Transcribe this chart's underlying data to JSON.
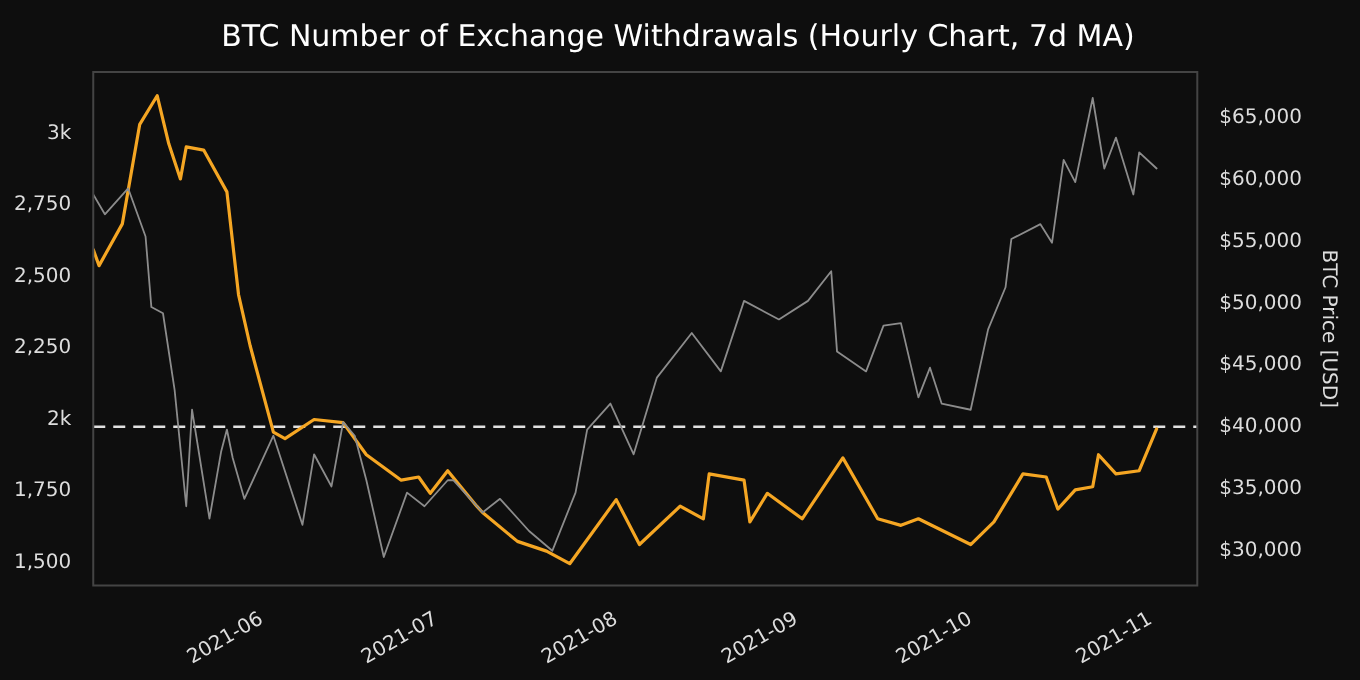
{
  "chart_data": {
    "type": "line",
    "title": "BTC Number of Exchange Withdrawals (Hourly Chart, 7d MA)",
    "y2label": "BTC Price [USD]",
    "xlim": [
      "2021-05-03",
      "2021-11-09"
    ],
    "xticks": [
      "2021-06",
      "2021-07",
      "2021-08",
      "2021-09",
      "2021-10",
      "2021-11"
    ],
    "ylim": [
      1420,
      3215
    ],
    "yticks": [
      {
        "value": 1500,
        "label": "1,500"
      },
      {
        "value": 1750,
        "label": "1,750"
      },
      {
        "value": 2000,
        "label": "2k"
      },
      {
        "value": 2250,
        "label": "2,250"
      },
      {
        "value": 2500,
        "label": "2,500"
      },
      {
        "value": 2750,
        "label": "2,750"
      },
      {
        "value": 3000,
        "label": "3k"
      }
    ],
    "y2lim": [
      27200,
      68700
    ],
    "y2ticks": [
      {
        "value": 30000,
        "label": "$30,000"
      },
      {
        "value": 35000,
        "label": "$35,000"
      },
      {
        "value": 40000,
        "label": "$40,000"
      },
      {
        "value": 45000,
        "label": "$45,000"
      },
      {
        "value": 50000,
        "label": "$50,000"
      },
      {
        "value": 55000,
        "label": "$55,000"
      },
      {
        "value": 60000,
        "label": "$60,000"
      },
      {
        "value": 65000,
        "label": "$65,000"
      }
    ],
    "grid": false,
    "legend": false,
    "ref_lines": [
      {
        "axis": "y",
        "value": 1975,
        "color": "#e0e0e0",
        "line_style": "dashed"
      }
    ],
    "series": [
      {
        "axis": "y2",
        "color": "#8c8c8c",
        "x": [
          "2021-05-03",
          "2021-05-05",
          "2021-05-09",
          "2021-05-12",
          "2021-05-13",
          "2021-05-15",
          "2021-05-17",
          "2021-05-19",
          "2021-05-20",
          "2021-05-23",
          "2021-05-25",
          "2021-05-26",
          "2021-05-27",
          "2021-05-29",
          "2021-06-03",
          "2021-06-08",
          "2021-06-10",
          "2021-06-13",
          "2021-06-15",
          "2021-06-17",
          "2021-06-19",
          "2021-06-22",
          "2021-06-26",
          "2021-06-29",
          "2021-07-03",
          "2021-07-04",
          "2021-07-09",
          "2021-07-12",
          "2021-07-17",
          "2021-07-21",
          "2021-07-25",
          "2021-07-27",
          "2021-07-31",
          "2021-08-04",
          "2021-08-08",
          "2021-08-14",
          "2021-08-19",
          "2021-08-23",
          "2021-08-29",
          "2021-09-03",
          "2021-09-07",
          "2021-09-08",
          "2021-09-13",
          "2021-09-16",
          "2021-09-19",
          "2021-09-22",
          "2021-09-24",
          "2021-09-26",
          "2021-10-01",
          "2021-10-04",
          "2021-10-07",
          "2021-10-08",
          "2021-10-13",
          "2021-10-15",
          "2021-10-17",
          "2021-10-19",
          "2021-10-22",
          "2021-10-24",
          "2021-10-26",
          "2021-10-29",
          "2021-10-30",
          "2021-11-02"
        ],
        "values": [
          58800,
          57200,
          59300,
          55400,
          49700,
          49200,
          43000,
          33600,
          41400,
          32600,
          38000,
          39800,
          37500,
          34200,
          39300,
          32100,
          37800,
          35200,
          40400,
          39300,
          35700,
          29500,
          34700,
          33600,
          35700,
          35700,
          33100,
          34200,
          31600,
          30000,
          34700,
          39800,
          41900,
          37800,
          44000,
          47600,
          44500,
          50200,
          48700,
          50200,
          52600,
          46100,
          44500,
          48200,
          48400,
          42400,
          44800,
          41900,
          41400,
          47900,
          51300,
          55200,
          56400,
          54900,
          61600,
          59800,
          66600,
          60900,
          63400,
          58800,
          62200,
          60900
        ]
      },
      {
        "color": "#f5a623",
        "x": [
          "2021-05-03",
          "2021-05-04",
          "2021-05-08",
          "2021-05-11",
          "2021-05-14",
          "2021-05-16",
          "2021-05-18",
          "2021-05-19",
          "2021-05-22",
          "2021-05-26",
          "2021-05-28",
          "2021-05-30",
          "2021-06-03",
          "2021-06-05",
          "2021-06-10",
          "2021-06-15",
          "2021-06-19",
          "2021-06-25",
          "2021-06-28",
          "2021-06-30",
          "2021-07-03",
          "2021-07-08",
          "2021-07-09",
          "2021-07-15",
          "2021-07-20",
          "2021-07-24",
          "2021-08-01",
          "2021-08-05",
          "2021-08-12",
          "2021-08-16",
          "2021-08-17",
          "2021-08-23",
          "2021-08-24",
          "2021-08-27",
          "2021-09-02",
          "2021-09-09",
          "2021-09-15",
          "2021-09-19",
          "2021-09-22",
          "2021-10-01",
          "2021-10-05",
          "2021-10-10",
          "2021-10-14",
          "2021-10-16",
          "2021-10-19",
          "2021-10-22",
          "2021-10-23",
          "2021-10-26",
          "2021-10-30",
          "2021-11-02"
        ],
        "values": [
          2594,
          2538,
          2684,
          3032,
          3132,
          2964,
          2841,
          2953,
          2942,
          2796,
          2437,
          2258,
          1956,
          1933,
          2000,
          1989,
          1877,
          1788,
          1799,
          1742,
          1821,
          1697,
          1675,
          1574,
          1540,
          1496,
          1720,
          1563,
          1697,
          1653,
          1810,
          1788,
          1642,
          1742,
          1653,
          1866,
          1653,
          1630,
          1653,
          1563,
          1642,
          1810,
          1799,
          1687,
          1754,
          1765,
          1877,
          1810,
          1821,
          1967
        ]
      }
    ]
  }
}
